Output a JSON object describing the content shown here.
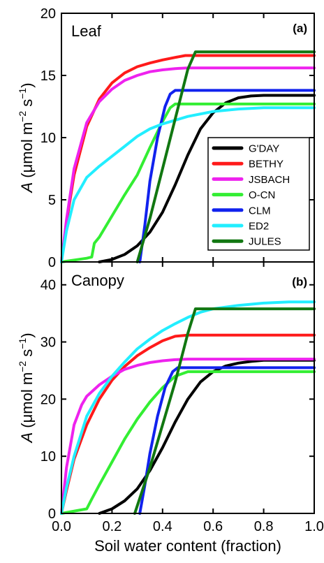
{
  "colors": {
    "G'DAY": "#000000",
    "BETHY": "#ff1a1a",
    "JSBACH": "#ee22ee",
    "O-CN": "#33ee33",
    "CLM": "#1122ee",
    "ED2": "#22eeff",
    "JULES": "#117711"
  },
  "x_axis": {
    "title": "Soil water content (fraction)",
    "ticks": [
      0.0,
      0.2,
      0.4,
      0.6,
      0.8,
      1.0
    ],
    "tick_labels": [
      "0.0",
      "0.2",
      "0.4",
      "0.6",
      "0.8",
      "1.0"
    ]
  },
  "y_axis_title": {
    "italic_part": "A",
    "rest": " (μmol m",
    "sup1": "−2",
    "mid": " s",
    "sup2": "−1",
    "end": ")"
  },
  "legend": [
    "G'DAY",
    "BETHY",
    "JSBACH",
    "O-CN",
    "CLM",
    "ED2",
    "JULES"
  ],
  "chart_data": [
    {
      "type": "line",
      "panel_label": "(a)",
      "title": "Leaf",
      "xlim": [
        0,
        1
      ],
      "ylim": [
        0,
        20
      ],
      "yticks": [
        0,
        5,
        10,
        15,
        20
      ],
      "series": [
        {
          "name": "G'DAY",
          "x": [
            0.15,
            0.2,
            0.25,
            0.3,
            0.35,
            0.4,
            0.45,
            0.5,
            0.55,
            0.6,
            0.65,
            0.7,
            0.75,
            0.8,
            0.85,
            0.9,
            1.0
          ],
          "y": [
            0.0,
            0.2,
            0.6,
            1.3,
            2.4,
            4.0,
            6.2,
            8.6,
            10.7,
            12.0,
            12.8,
            13.2,
            13.35,
            13.4,
            13.4,
            13.4,
            13.4
          ]
        },
        {
          "name": "BETHY",
          "x": [
            0.0,
            0.02,
            0.05,
            0.1,
            0.15,
            0.2,
            0.25,
            0.3,
            0.35,
            0.4,
            0.45,
            0.49,
            0.6,
            0.8,
            1.0
          ],
          "y": [
            0.0,
            3.2,
            7.0,
            10.9,
            13.1,
            14.4,
            15.2,
            15.7,
            16.0,
            16.25,
            16.45,
            16.6,
            16.6,
            16.6,
            16.6
          ]
        },
        {
          "name": "JSBACH",
          "x": [
            0.0,
            0.02,
            0.05,
            0.1,
            0.15,
            0.2,
            0.25,
            0.3,
            0.35,
            0.4,
            0.45,
            0.5,
            0.6,
            0.8,
            1.0
          ],
          "y": [
            0.0,
            3.4,
            7.5,
            11.2,
            12.9,
            13.9,
            14.6,
            15.0,
            15.3,
            15.45,
            15.55,
            15.6,
            15.6,
            15.6,
            15.6
          ]
        },
        {
          "name": "O-CN",
          "x": [
            0.0,
            0.1,
            0.12,
            0.13,
            0.15,
            0.2,
            0.25,
            0.3,
            0.35,
            0.4,
            0.43,
            0.45,
            0.6,
            0.8,
            1.0
          ],
          "y": [
            0.0,
            0.3,
            0.4,
            1.5,
            2.0,
            3.7,
            5.4,
            7.0,
            9.2,
            11.3,
            12.4,
            12.7,
            12.7,
            12.7,
            12.7
          ]
        },
        {
          "name": "CLM",
          "x": [
            0.31,
            0.33,
            0.35,
            0.38,
            0.41,
            0.43,
            0.45,
            0.6,
            0.8,
            1.0
          ],
          "y": [
            0.0,
            3.0,
            6.5,
            10.0,
            12.5,
            13.5,
            13.8,
            13.8,
            13.8,
            13.8
          ]
        },
        {
          "name": "ED2",
          "x": [
            0.0,
            0.02,
            0.05,
            0.1,
            0.15,
            0.2,
            0.25,
            0.3,
            0.35,
            0.4,
            0.45,
            0.5,
            0.6,
            0.7,
            0.8,
            0.9,
            1.0
          ],
          "y": [
            0.0,
            2.5,
            5.0,
            6.8,
            7.7,
            8.5,
            9.3,
            10.1,
            10.7,
            11.1,
            11.4,
            11.7,
            12.1,
            12.3,
            12.4,
            12.4,
            12.4
          ]
        },
        {
          "name": "JULES",
          "x": [
            0.3,
            0.35,
            0.4,
            0.45,
            0.5,
            0.53,
            0.6,
            0.8,
            1.0
          ],
          "y": [
            0.0,
            3.5,
            7.5,
            11.5,
            15.5,
            16.9,
            16.9,
            16.9,
            16.9
          ]
        }
      ]
    },
    {
      "type": "line",
      "panel_label": "(b)",
      "title": "Canopy",
      "xlim": [
        0,
        1
      ],
      "ylim": [
        0,
        44
      ],
      "yticks": [
        0,
        10,
        20,
        30,
        40
      ],
      "series": [
        {
          "name": "G'DAY",
          "x": [
            0.15,
            0.2,
            0.25,
            0.3,
            0.35,
            0.4,
            0.45,
            0.5,
            0.55,
            0.6,
            0.65,
            0.7,
            0.75,
            0.8,
            0.85,
            1.0
          ],
          "y": [
            0.0,
            0.8,
            2.2,
            4.3,
            7.5,
            11.5,
            16.0,
            20.0,
            23.0,
            24.8,
            25.8,
            26.3,
            26.6,
            26.8,
            26.8,
            26.8
          ]
        },
        {
          "name": "BETHY",
          "x": [
            0.0,
            0.02,
            0.05,
            0.1,
            0.15,
            0.2,
            0.25,
            0.3,
            0.35,
            0.4,
            0.45,
            0.5,
            0.6,
            0.8,
            1.0
          ],
          "y": [
            0.0,
            4.0,
            9.5,
            15.5,
            20.0,
            23.3,
            25.7,
            27.6,
            29.0,
            30.2,
            31.0,
            31.2,
            31.2,
            31.2,
            31.2
          ]
        },
        {
          "name": "JSBACH",
          "x": [
            0.0,
            0.02,
            0.05,
            0.08,
            0.1,
            0.15,
            0.2,
            0.25,
            0.3,
            0.35,
            0.4,
            0.45,
            0.5,
            0.6,
            0.8,
            1.0
          ],
          "y": [
            0.0,
            8.0,
            15.5,
            19.0,
            20.5,
            22.5,
            24.0,
            25.2,
            25.9,
            26.4,
            26.7,
            26.9,
            27.0,
            27.0,
            27.0,
            27.0
          ]
        },
        {
          "name": "O-CN",
          "x": [
            0.0,
            0.1,
            0.12,
            0.15,
            0.2,
            0.25,
            0.3,
            0.35,
            0.4,
            0.45,
            0.5,
            0.6,
            0.8,
            1.0
          ],
          "y": [
            0.0,
            0.8,
            2.5,
            5.0,
            9.0,
            13.0,
            16.5,
            19.5,
            22.0,
            24.0,
            24.8,
            24.8,
            24.8,
            24.8
          ]
        },
        {
          "name": "CLM",
          "x": [
            0.31,
            0.33,
            0.35,
            0.38,
            0.41,
            0.44,
            0.46,
            0.6,
            0.8,
            1.0
          ],
          "y": [
            0.0,
            5.0,
            10.5,
            17.0,
            22.0,
            24.8,
            25.5,
            25.5,
            25.5,
            25.5
          ]
        },
        {
          "name": "ED2",
          "x": [
            0.0,
            0.02,
            0.05,
            0.1,
            0.15,
            0.2,
            0.25,
            0.3,
            0.35,
            0.4,
            0.45,
            0.5,
            0.55,
            0.6,
            0.7,
            0.8,
            0.9,
            1.0
          ],
          "y": [
            0.0,
            4.5,
            10.0,
            17.0,
            21.0,
            24.0,
            26.5,
            28.8,
            30.5,
            32.0,
            33.2,
            34.3,
            35.2,
            35.8,
            36.4,
            36.8,
            37.0,
            37.0
          ]
        },
        {
          "name": "JULES",
          "x": [
            0.29,
            0.35,
            0.4,
            0.45,
            0.5,
            0.53,
            0.6,
            0.8,
            1.0
          ],
          "y": [
            0.0,
            8.0,
            15.5,
            23.0,
            31.5,
            35.8,
            35.8,
            35.8,
            35.8
          ]
        }
      ]
    }
  ]
}
